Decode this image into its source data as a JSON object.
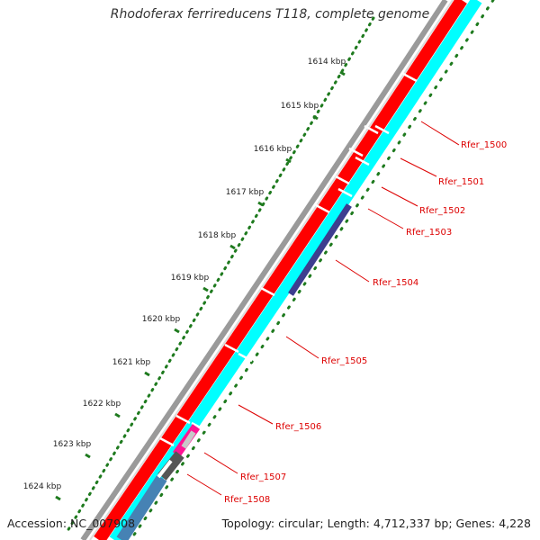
{
  "title": "Rhodoferax ferrireducens T118, complete genome",
  "footer": {
    "accession": "Accession: NC_007908",
    "summary": "Topology: circular; Length: 4,712,337 bp; Genes: 4,228"
  },
  "colors": {
    "backbone": "#8c8c8c",
    "forward_track": "#ff0000",
    "reverse_track": "#00ffff",
    "tick_major": "#1e7a1e",
    "tick_minor": "#1e7a1e",
    "label": "#dd0000",
    "dark_blue": "#3d3d8f",
    "pink": "#ff1493",
    "light_gray": "#c8c8c8",
    "dark_gray": "#555555",
    "steel_blue": "#4682b4"
  },
  "ticks": [
    {
      "label": "1614 kbp"
    },
    {
      "label": "1615 kbp"
    },
    {
      "label": "1616 kbp"
    },
    {
      "label": "1617 kbp"
    },
    {
      "label": "1618 kbp"
    },
    {
      "label": "1619 kbp"
    },
    {
      "label": "1620 kbp"
    },
    {
      "label": "1621 kbp"
    },
    {
      "label": "1622 kbp"
    },
    {
      "label": "1623 kbp"
    },
    {
      "label": "1624 kbp"
    }
  ],
  "genes": [
    {
      "label": "Rfer_1500"
    },
    {
      "label": "Rfer_1501"
    },
    {
      "label": "Rfer_1502"
    },
    {
      "label": "Rfer_1503"
    },
    {
      "label": "Rfer_1504"
    },
    {
      "label": "Rfer_1505"
    },
    {
      "label": "Rfer_1506"
    },
    {
      "label": "Rfer_1507"
    },
    {
      "label": "Rfer_1508"
    }
  ]
}
